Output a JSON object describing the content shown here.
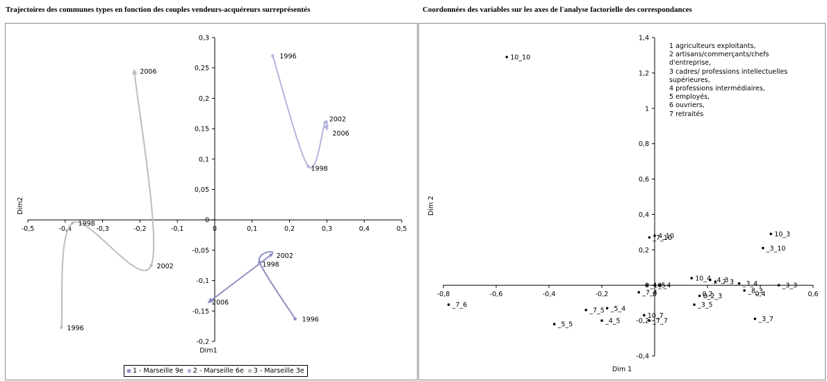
{
  "left_title": "Trajectoires des communes types en fonction des couples vendeurs-acquéreurs surreprésentés",
  "right_title": "Coordonnées des variables sur les axes de l'analyse factorielle des correspondances",
  "colors": {
    "series_9e": "#8e8ec4",
    "series_6e": "#b4b4dc",
    "series_3e": "#bdbdbd",
    "axis": "#000000"
  },
  "chart_data": [
    {
      "type": "line",
      "xlabel": "Dim1",
      "ylabel": "Dim2",
      "xlim": [
        -0.5,
        0.5
      ],
      "ylim": [
        -0.2,
        0.3
      ],
      "x_ticks": [
        -0.5,
        -0.4,
        -0.3,
        -0.2,
        -0.1,
        0,
        0.1,
        0.2,
        0.3,
        0.4,
        0.5
      ],
      "y_ticks": [
        -0.2,
        -0.15,
        -0.1,
        -0.05,
        0,
        0.05,
        0.1,
        0.15,
        0.2,
        0.25,
        0.3
      ],
      "x_tick_labels": [
        "-0,5",
        "-0,4",
        "-0,3",
        "-0,2",
        "-0,1",
        "0",
        "0,1",
        "0,2",
        "0,3",
        "0,4",
        "0,5"
      ],
      "y_tick_labels": [
        "-0,2",
        "-0,15",
        "-0,1",
        "-0,05",
        "0",
        "0,05",
        "0,1",
        "0,15",
        "0,2",
        "0,25",
        "0,3"
      ],
      "legend_position": "bottom",
      "series": [
        {
          "name": "1 - Marseille 9e",
          "color": "#8e8ec4",
          "points": [
            {
              "label": "1996",
              "x": 0.215,
              "y": -0.163
            },
            {
              "label": "1998",
              "x": 0.12,
              "y": -0.07
            },
            {
              "label": "2002",
              "x": 0.15,
              "y": -0.058
            },
            {
              "label": "2006",
              "x": -0.015,
              "y": -0.135
            }
          ]
        },
        {
          "name": "2 - Marseille 6e",
          "color": "#b4b4dc",
          "points": [
            {
              "label": "1996",
              "x": 0.155,
              "y": 0.27
            },
            {
              "label": "1998",
              "x": 0.25,
              "y": 0.088
            },
            {
              "label": "2002",
              "x": 0.295,
              "y": 0.16
            },
            {
              "label": "2006",
              "x": 0.3,
              "y": 0.15
            }
          ]
        },
        {
          "name": "3 - Marseille 3e",
          "color": "#bdbdbd",
          "points": [
            {
              "label": "1996",
              "x": -0.41,
              "y": -0.177
            },
            {
              "label": "1998",
              "x": -0.38,
              "y": -0.005
            },
            {
              "label": "2002",
              "x": -0.17,
              "y": -0.075
            },
            {
              "label": "2006",
              "x": -0.215,
              "y": 0.245
            }
          ]
        }
      ]
    },
    {
      "type": "scatter",
      "xlabel": "Dim 1",
      "ylabel": "Dim 2",
      "xlim": [
        -0.8,
        0.6
      ],
      "ylim": [
        -0.4,
        1.4
      ],
      "x_ticks": [
        -0.8,
        -0.6,
        -0.4,
        -0.2,
        0,
        0.2,
        0.4,
        0.6
      ],
      "y_ticks": [
        -0.4,
        -0.2,
        0,
        0.2,
        0.4,
        0.6,
        0.8,
        1,
        1.2,
        1.4
      ],
      "x_tick_labels": [
        "-0,8",
        "-0,6",
        "-0,4",
        "-0,2",
        "0",
        "0,2",
        "0,4",
        "0,6"
      ],
      "y_tick_labels": [
        "-0,4",
        "-0,2",
        "0",
        "0,2",
        "0,4",
        "0,6",
        "0,8",
        "1",
        "1,2",
        "1,4"
      ],
      "points": [
        {
          "label": "10_10",
          "x": -0.56,
          "y": 1.29
        },
        {
          "label": "10_3",
          "x": 0.44,
          "y": 0.29
        },
        {
          "label": "_3_10",
          "x": 0.41,
          "y": 0.21
        },
        {
          "label": "_7_10",
          "x": -0.02,
          "y": 0.27
        },
        {
          "label": "4_10",
          "x": 0.0,
          "y": 0.28
        },
        {
          "label": "10_4",
          "x": 0.14,
          "y": 0.04
        },
        {
          "label": "_4_3",
          "x": 0.21,
          "y": 0.03
        },
        {
          "label": "_7_3",
          "x": 0.23,
          "y": 0.02
        },
        {
          "label": "_3_4",
          "x": 0.32,
          "y": 0.01
        },
        {
          "label": "_3_3",
          "x": 0.47,
          "y": 0.0
        },
        {
          "label": "_8_3",
          "x": 0.34,
          "y": -0.03
        },
        {
          "label": "0_2_3",
          "x": 0.17,
          "y": -0.06
        },
        {
          "label": "_3_5",
          "x": 0.15,
          "y": -0.11
        },
        {
          "label": "_3_7",
          "x": 0.38,
          "y": -0.19
        },
        {
          "label": "_7_6",
          "x": -0.78,
          "y": -0.11
        },
        {
          "label": "_5_5",
          "x": -0.38,
          "y": -0.22
        },
        {
          "label": "_7_5",
          "x": -0.26,
          "y": -0.14
        },
        {
          "label": "_5_4",
          "x": -0.18,
          "y": -0.13
        },
        {
          "label": "_4_5",
          "x": -0.2,
          "y": -0.2
        },
        {
          "label": "10_7",
          "x": -0.04,
          "y": -0.17
        },
        {
          "label": "_7_7",
          "x": -0.02,
          "y": -0.2
        },
        {
          "label": "_7_4",
          "x": -0.06,
          "y": -0.04
        },
        {
          "label": "_10",
          "x": -0.03,
          "y": 0.0
        },
        {
          "label": "_5",
          "x": 0.0,
          "y": 0.0
        },
        {
          "label": "_4",
          "x": 0.02,
          "y": 0.0
        }
      ]
    }
  ],
  "legend_key": [
    "1 agriculteurs exploitants,",
    "2 artisans/commerçants/chefs d'entreprise,",
    "3 cadres/ professions intellectuelles supérieures,",
    "4 professions intermédiaires,",
    "5 employés,",
    "6 ouvriers,",
    "7 retraités"
  ]
}
